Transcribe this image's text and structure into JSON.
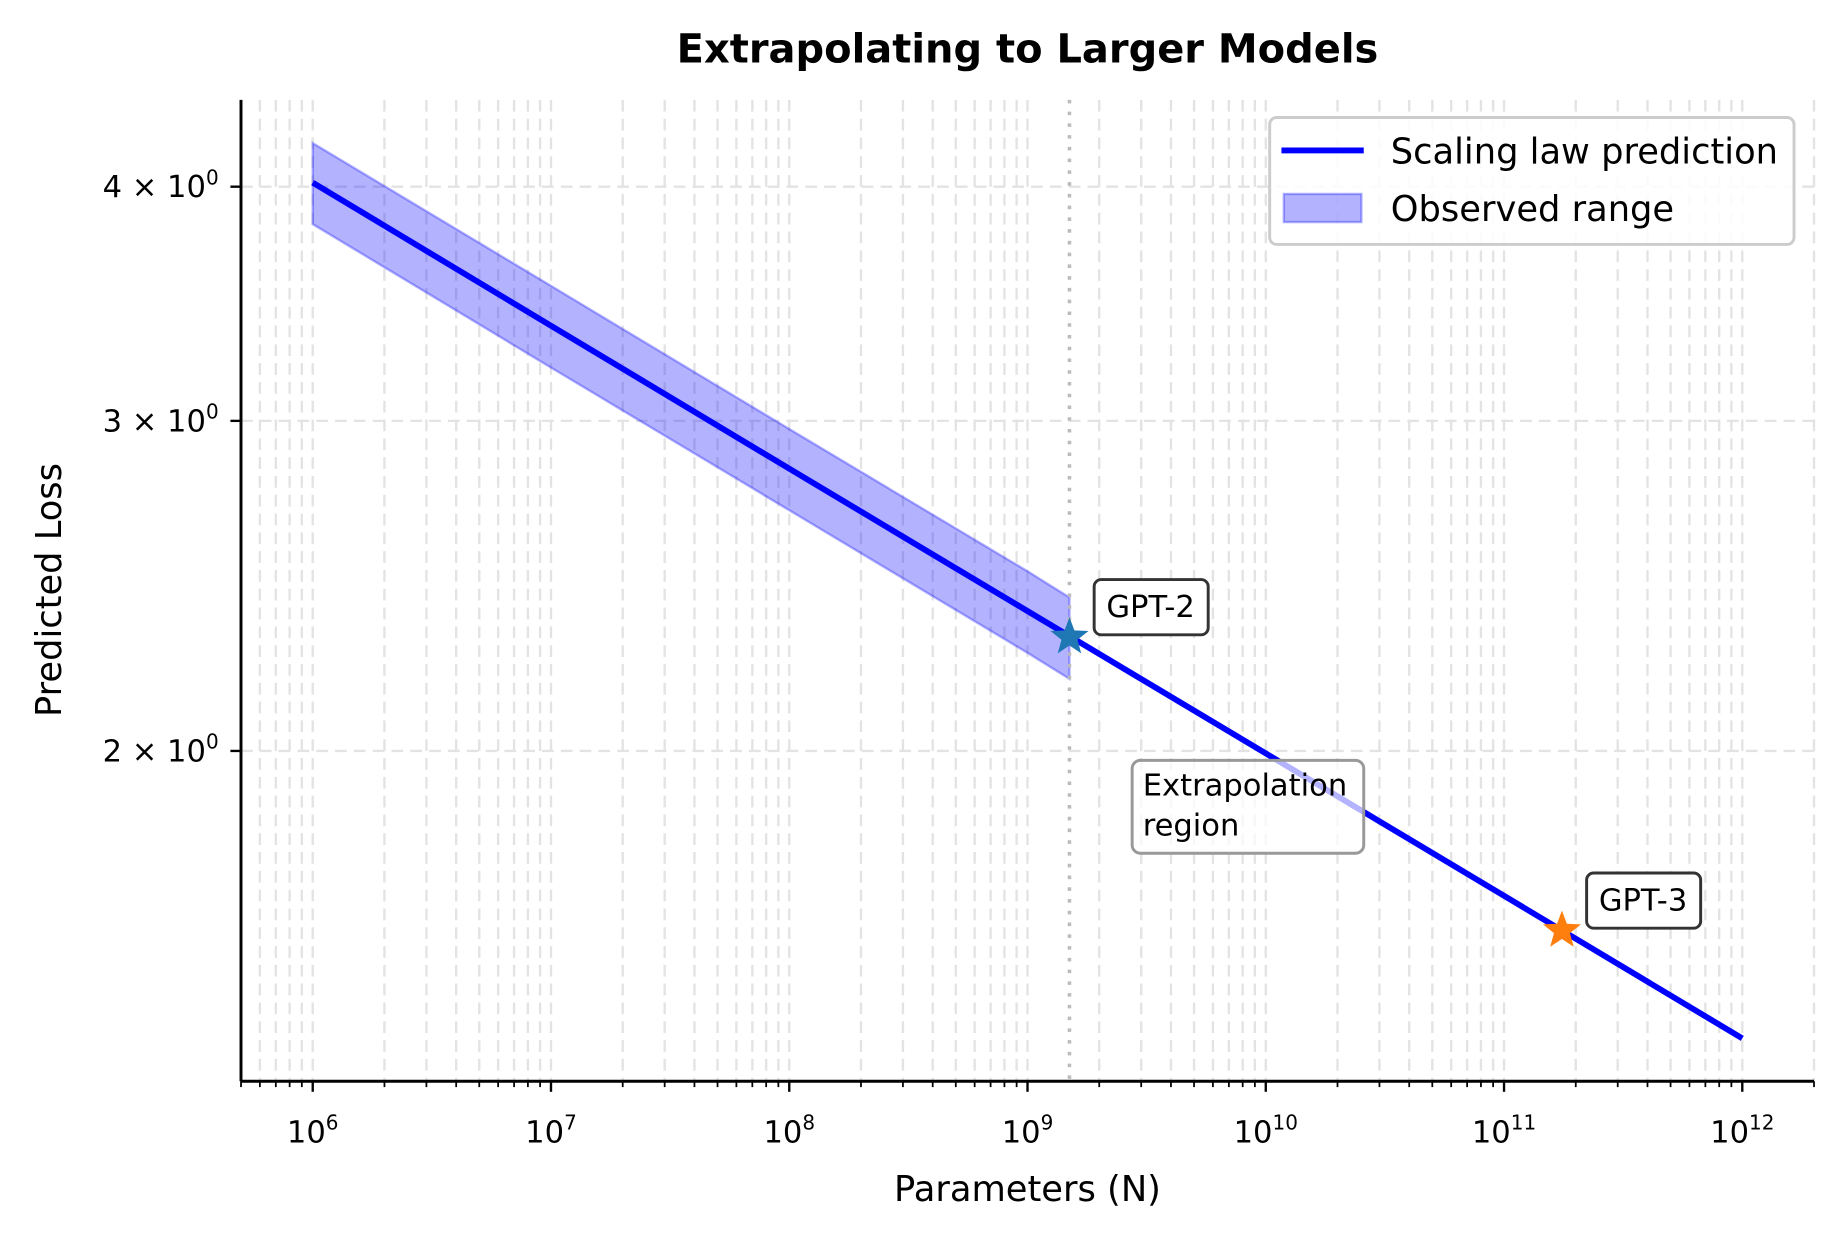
{
  "chart_data": {
    "type": "line",
    "title": "Extrapolating to Larger Models",
    "xlabel": "Parameters (N)",
    "ylabel": "Predicted Loss",
    "xscale": "log",
    "yscale": "log",
    "xlim": [
      500000.0,
      2000000000000.0
    ],
    "ylim": [
      1.333,
      4.45
    ],
    "grid": true,
    "legend_placement": "top-right",
    "x_ticks": [
      {
        "value": 1000000.0,
        "base": "10",
        "exp": "6"
      },
      {
        "value": 10000000.0,
        "base": "10",
        "exp": "7"
      },
      {
        "value": 100000000.0,
        "base": "10",
        "exp": "8"
      },
      {
        "value": 1000000000.0,
        "base": "10",
        "exp": "9"
      },
      {
        "value": 10000000000.0,
        "base": "10",
        "exp": "10"
      },
      {
        "value": 100000000000.0,
        "base": "10",
        "exp": "11"
      },
      {
        "value": 1000000000000.0,
        "base": "10",
        "exp": "12"
      }
    ],
    "y_ticks": [
      {
        "value": 4,
        "mant": "4 × 10",
        "exp": "0"
      },
      {
        "value": 3,
        "mant": "3 × 10",
        "exp": "0"
      },
      {
        "value": 2,
        "mant": "2 × 10",
        "exp": "0"
      }
    ],
    "series": [
      {
        "name": "Scaling law prediction",
        "color": "#0000ff",
        "x": [
          1000000.0,
          10000000.0,
          100000000.0,
          1000000000.0,
          10000000000.0,
          100000000000.0,
          1000000000000.0
        ],
        "y": [
          4.02,
          3.372,
          2.829,
          2.375,
          1.994,
          1.674,
          1.405
        ]
      }
    ],
    "band": {
      "name": "Observed range",
      "color": "#0000ff",
      "x": [
        1000000.0,
        10000000.0,
        100000000.0,
        1000000000.0,
        1500000000.0
      ],
      "lower": [
        3.82,
        3.203,
        2.688,
        2.256,
        2.185
      ],
      "upper": [
        4.22,
        3.541,
        2.97,
        2.494,
        2.415
      ]
    },
    "reference_line": {
      "x": 1500000000.0,
      "color": "#bbbbbb"
    },
    "points": [
      {
        "label": "GPT-2",
        "x": 1500000000.0,
        "y": 2.3,
        "color": "#1f77b4"
      },
      {
        "label": "GPT-3",
        "x": 175000000000.0,
        "y": 1.604,
        "color": "#ff7f0e"
      }
    ],
    "annotation": {
      "line1": "Extrapolation",
      "line2": "region"
    }
  }
}
